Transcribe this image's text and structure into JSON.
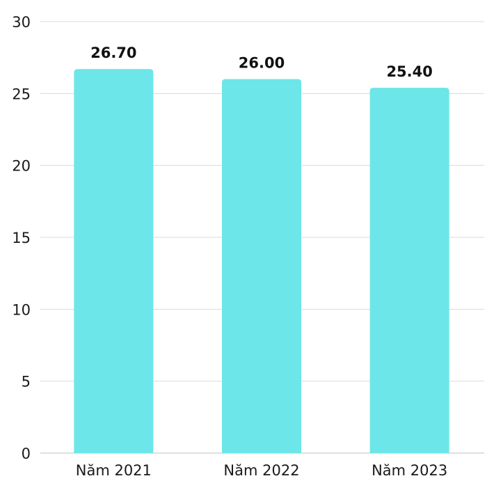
{
  "chart_data": {
    "type": "bar",
    "categories": [
      "Năm 2021",
      "Năm 2022",
      "Năm 2023"
    ],
    "values": [
      26.7,
      26.0,
      25.4
    ],
    "value_labels": [
      "26.70",
      "26.00",
      "25.40"
    ],
    "y_ticks": [
      "0",
      "5",
      "10",
      "15",
      "20",
      "25",
      "30"
    ],
    "ylim": [
      0,
      30
    ],
    "grid": true,
    "bar_color": "#6ce6e8",
    "title": "",
    "xlabel": "",
    "ylabel": ""
  }
}
